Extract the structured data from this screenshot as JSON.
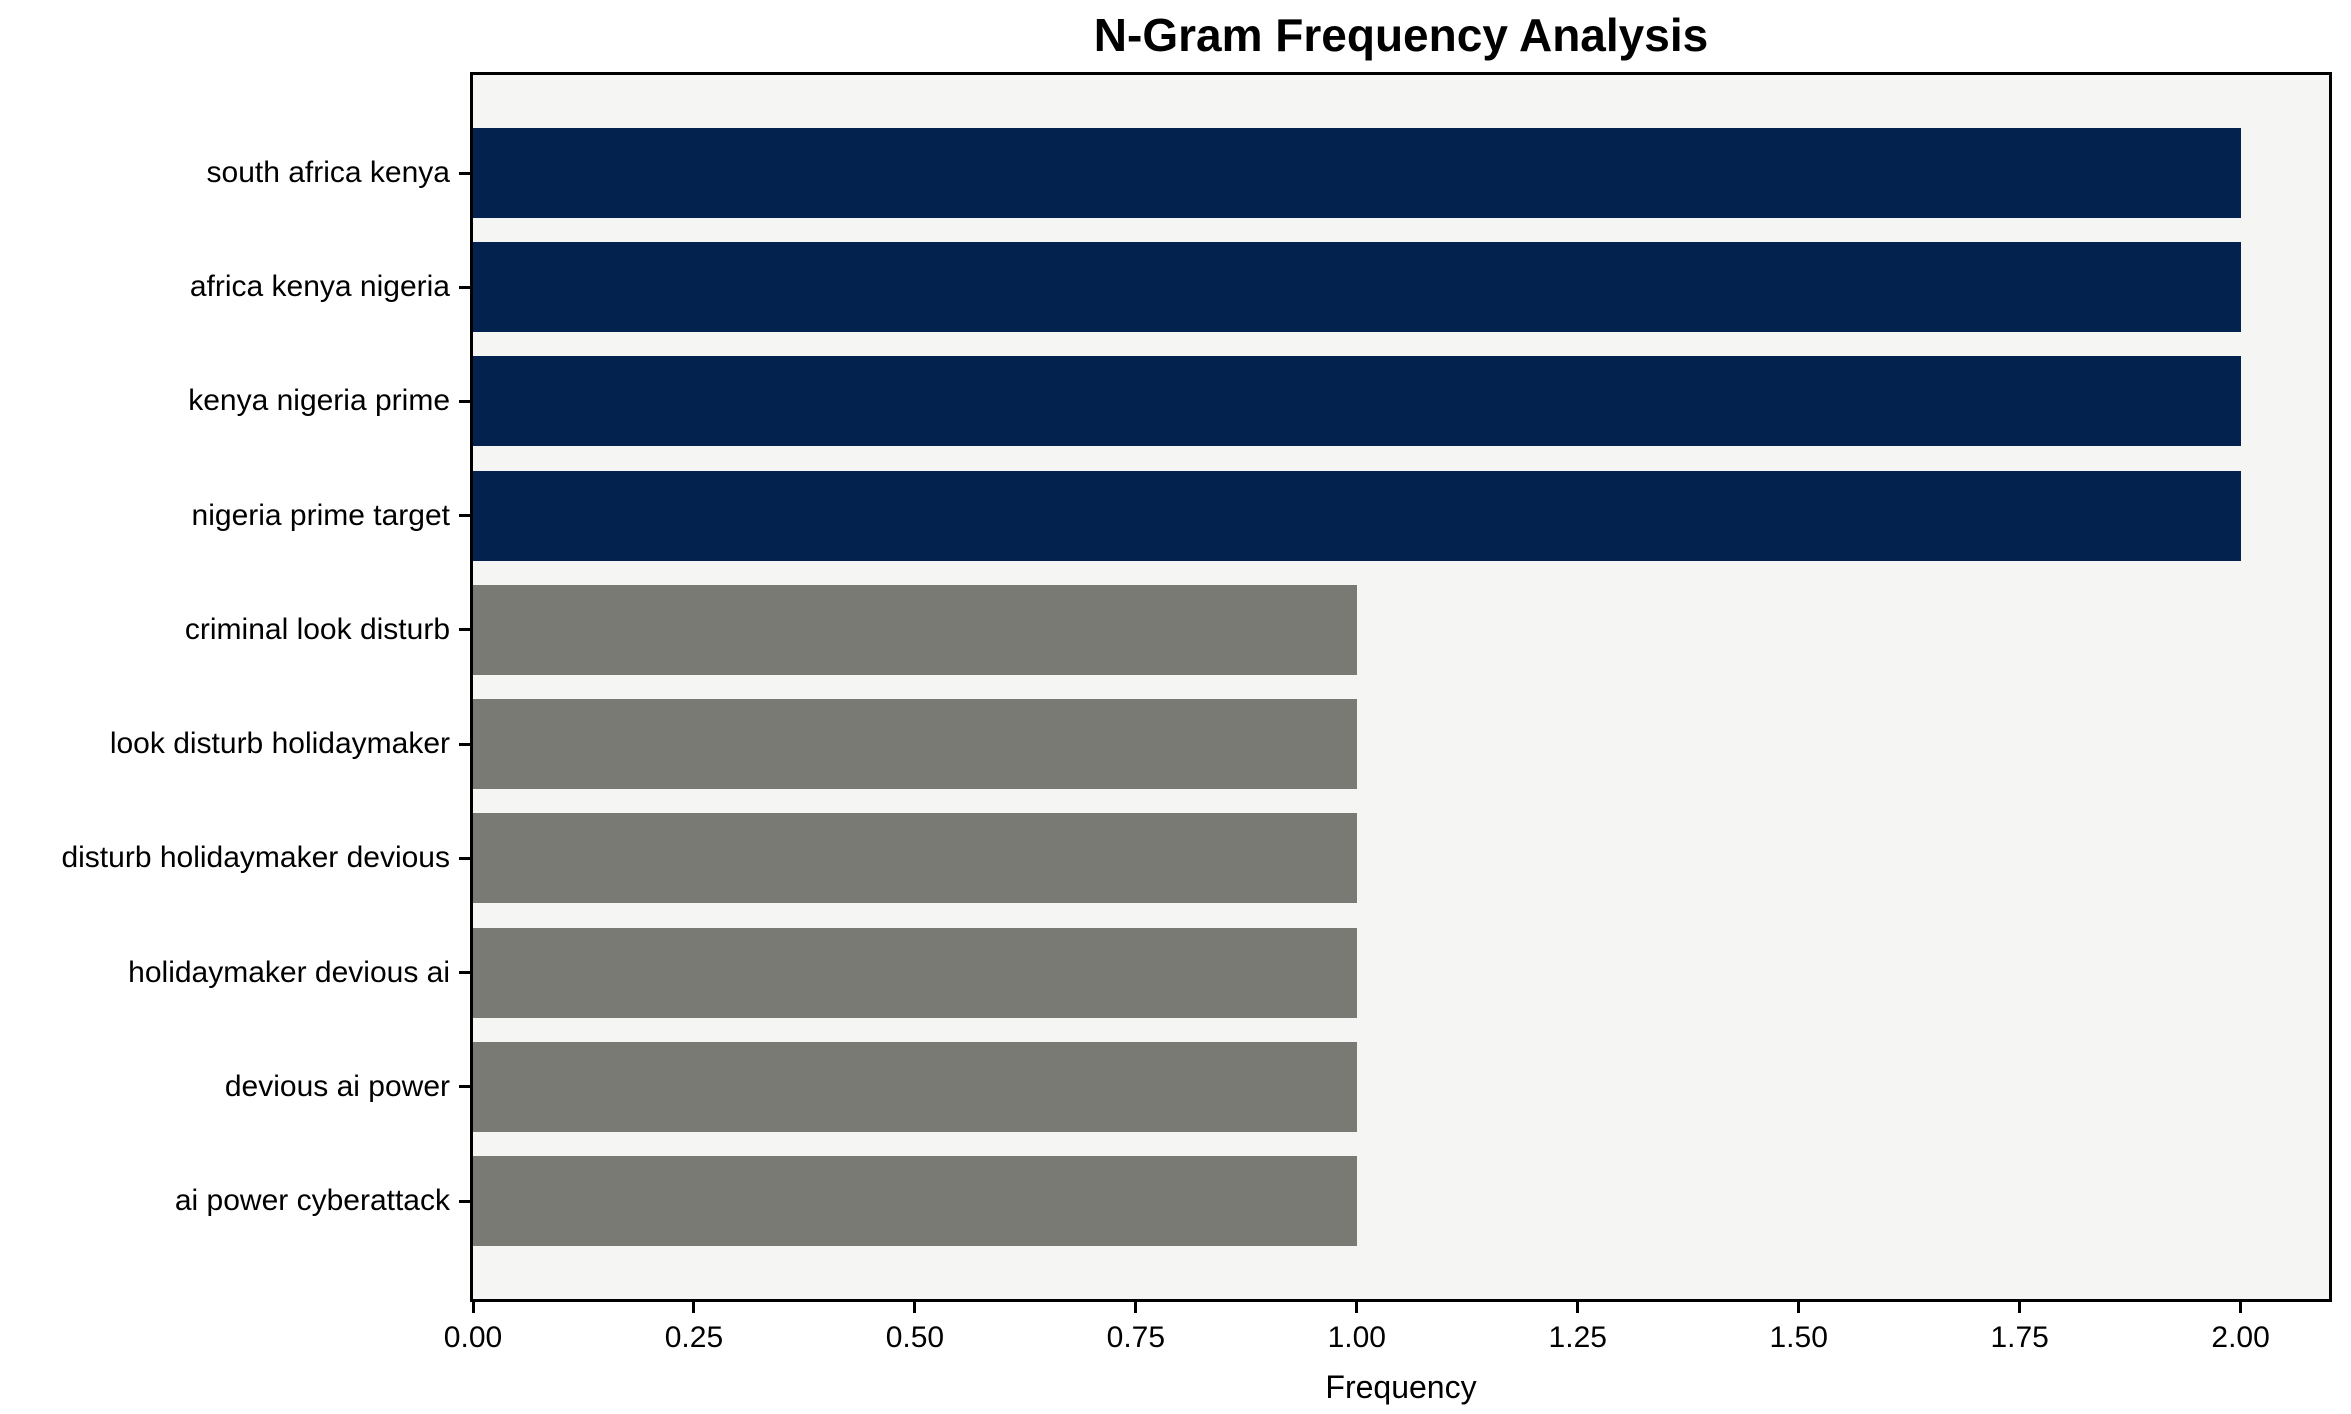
{
  "chart_data": {
    "type": "bar",
    "orientation": "horizontal",
    "title": "N-Gram Frequency Analysis",
    "xlabel": "Frequency",
    "ylabel": "",
    "categories": [
      "south africa kenya",
      "africa kenya nigeria",
      "kenya nigeria prime",
      "nigeria prime target",
      "criminal look disturb",
      "look disturb holidaymaker",
      "disturb holidaymaker devious",
      "holidaymaker devious ai",
      "devious ai power",
      "ai power cyberattack"
    ],
    "values": [
      2,
      2,
      2,
      2,
      1,
      1,
      1,
      1,
      1,
      1
    ],
    "bar_colors": [
      "#03234e",
      "#03234e",
      "#03234e",
      "#03234e",
      "#7a7a75",
      "#7a7a75",
      "#7a7a75",
      "#7a7a75",
      "#7a7a75",
      "#7a7a75"
    ],
    "colors": {
      "high_frequency": "#03234e",
      "low_frequency": "#7a7a75",
      "plot_background": "#f5f5f3",
      "figure_background": "#ffffff",
      "spine": "#000000",
      "text": "#000000"
    },
    "xlim": [
      0,
      2.1
    ],
    "xticks": [
      0.0,
      0.25,
      0.5,
      0.75,
      1.0,
      1.25,
      1.5,
      1.75,
      2.0
    ],
    "xtick_labels": [
      "0.00",
      "0.25",
      "0.50",
      "0.75",
      "1.00",
      "1.25",
      "1.50",
      "1.75",
      "2.00"
    ],
    "grid": false,
    "legend": "none"
  }
}
